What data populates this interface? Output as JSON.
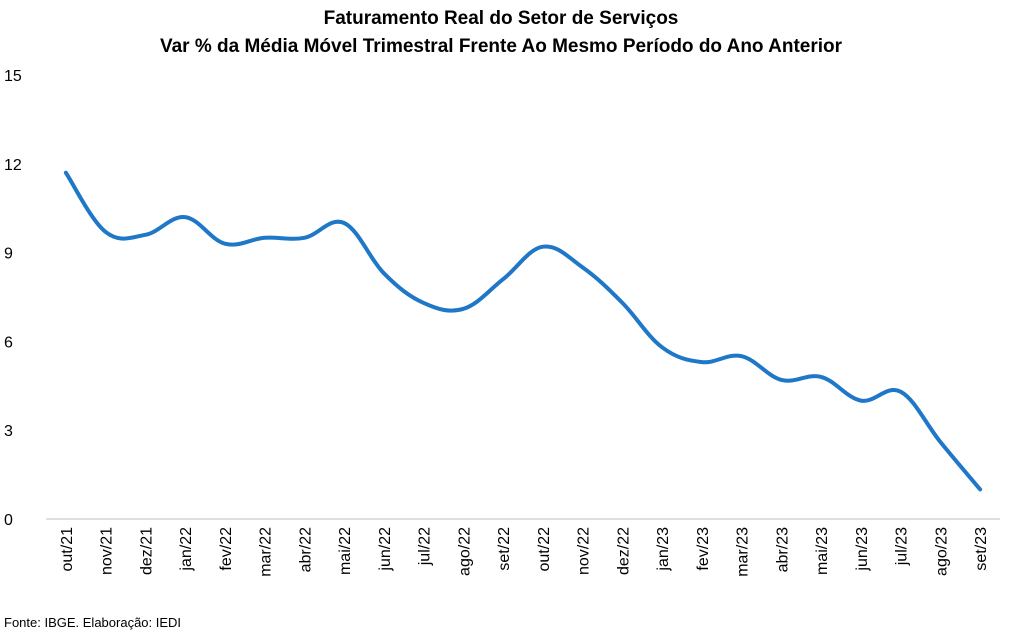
{
  "chart_data": {
    "type": "line",
    "title": "Faturamento Real do Setor de Serviços",
    "subtitle": "Var % da Média Móvel Trimestral Frente Ao Mesmo Período do Ano Anterior",
    "source": "Fonte: IBGE. Elaboração: IEDI",
    "categories": [
      "out/21",
      "nov/21",
      "dez/21",
      "jan/22",
      "fev/22",
      "mar/22",
      "abr/22",
      "mai/22",
      "jun/22",
      "jul/22",
      "ago/22",
      "set/22",
      "out/22",
      "nov/22",
      "dez/22",
      "jan/23",
      "fev/23",
      "mar/23",
      "abr/23",
      "mai/23",
      "jun/23",
      "jul/23",
      "ago/23",
      "set/23"
    ],
    "series": [
      {
        "values": [
          11.7,
          9.7,
          9.6,
          10.2,
          9.3,
          9.5,
          9.5,
          10.0,
          8.3,
          7.3,
          7.1,
          8.1,
          9.2,
          8.5,
          7.3,
          5.8,
          5.3,
          5.5,
          4.7,
          4.8,
          4.0,
          4.3,
          2.6,
          1.0
        ],
        "color": "#1f77c8"
      }
    ],
    "yticks": [
      "0",
      "3",
      "6",
      "9",
      "12",
      "15"
    ],
    "ylim": [
      0,
      15
    ],
    "grid": false,
    "legend": "none"
  }
}
